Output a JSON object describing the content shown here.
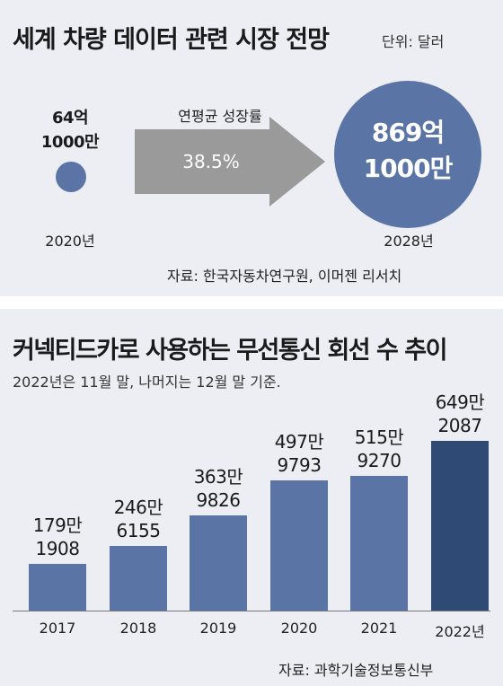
{
  "top": {
    "title": "세계 차량 데이터 관련 시장 전망",
    "unit": "단위: 달러",
    "start_value_line1": "64억",
    "start_value_line2": "1000만",
    "start_year": "2020년",
    "cagr_label": "연평균 성장률",
    "cagr_value": "38.5%",
    "end_value_line1": "869억",
    "end_value_line2": "1000만",
    "end_year": "2028년",
    "source": "자료: 한국자동차연구원, 이머젠 리서치",
    "colors": {
      "circle": "#5a74a6",
      "arrow": "#9a9a9a"
    }
  },
  "chart_data": {
    "type": "bar",
    "title": "커넥티드카로 사용하는 무선통신 회선 수 추이",
    "note": "2022년은 11월 말, 나머지는 12월 말 기준.",
    "categories": [
      "2017",
      "2018",
      "2019",
      "2020",
      "2021",
      "2022년"
    ],
    "values": [
      1791908,
      2466155,
      3639826,
      4979793,
      5159270,
      6492087
    ],
    "labels": [
      [
        "179만",
        "1908"
      ],
      [
        "246만",
        "6155"
      ],
      [
        "363만",
        "9826"
      ],
      [
        "497만",
        "9793"
      ],
      [
        "515만",
        "9270"
      ],
      [
        "649만",
        "2087"
      ]
    ],
    "ylim": [
      0,
      6600000
    ],
    "highlight_index": 5,
    "colors": {
      "bar": "#5a74a6",
      "highlight": "#2f4a75"
    },
    "source": "자료: 과학기술정보통신부"
  }
}
